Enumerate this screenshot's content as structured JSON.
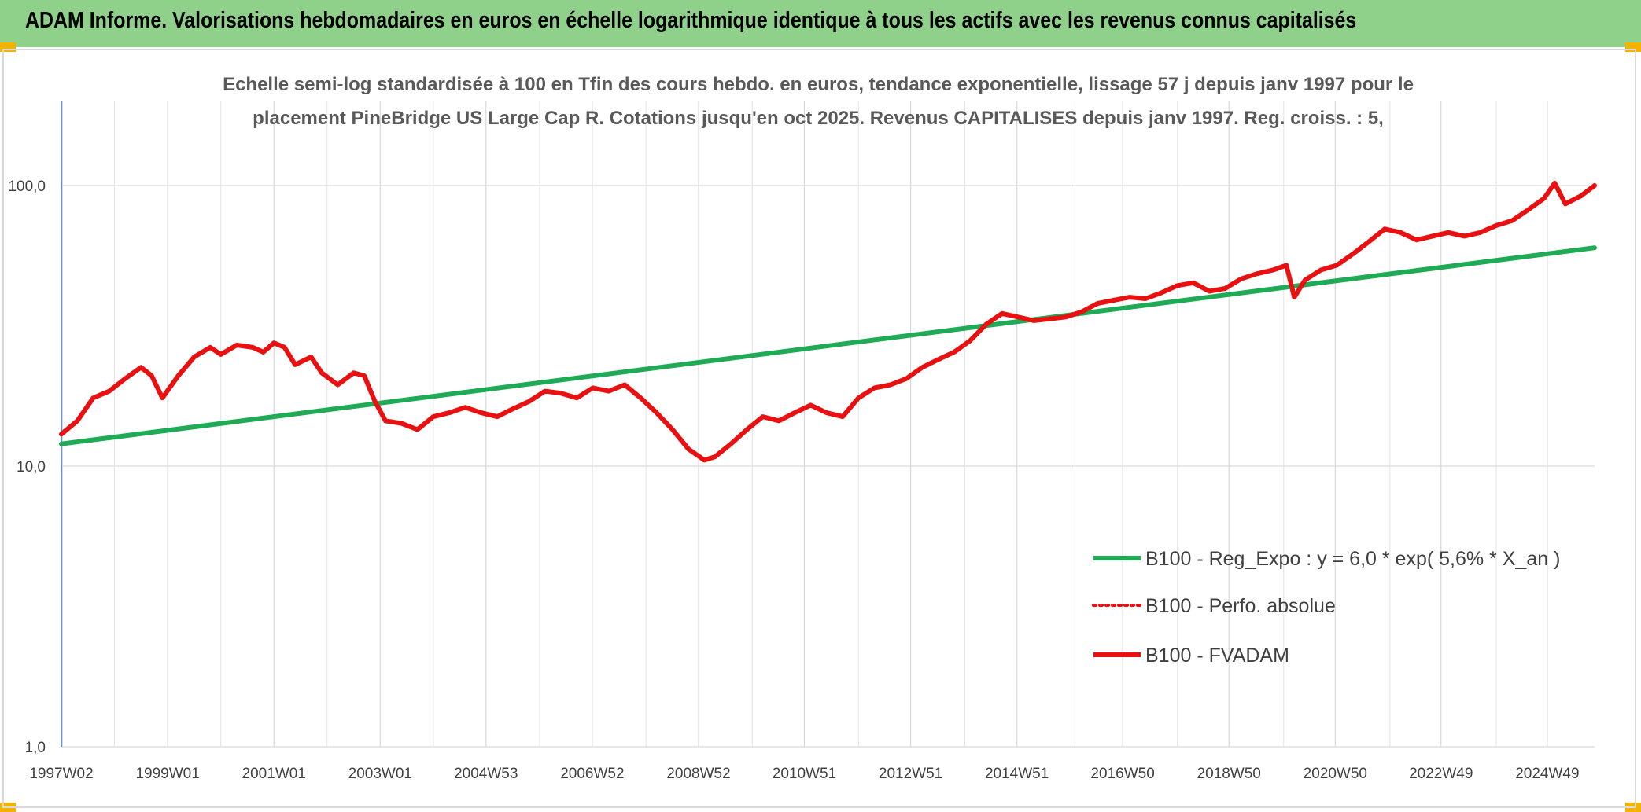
{
  "header": {
    "title": "ADAM Informe. Valorisations hebdomadaires en euros en échelle logarithmique identique à tous les actifs avec les revenus connus capitalisés",
    "background": "#8fd08a"
  },
  "chart_data": {
    "type": "line",
    "title_line1": "Echelle semi-log standardisée à 100 en Tfin des cours hebdo. en euros, tendance exponentielle, lissage 57 j depuis janv 1997 pour le",
    "title_line2": "placement PineBridge US Large Cap R. Cotations jusqu'en oct 2025. Revenus CAPITALISES depuis janv 1997. Reg. croiss. : 5,",
    "yscale": "log",
    "ylim": [
      1,
      200
    ],
    "xlim": [
      1997.0,
      2025.85
    ],
    "y_ticks": [
      {
        "value": 1,
        "label": "1,0"
      },
      {
        "value": 10,
        "label": "10,0"
      },
      {
        "value": 100,
        "label": "100,0"
      }
    ],
    "x_ticks": [
      {
        "year": 1997.02,
        "label": "1997W02"
      },
      {
        "year": 1999.0,
        "label": "1999W01"
      },
      {
        "year": 2001.0,
        "label": "2001W01"
      },
      {
        "year": 2003.0,
        "label": "2003W01"
      },
      {
        "year": 2004.99,
        "label": "2004W53"
      },
      {
        "year": 2006.99,
        "label": "2006W52"
      },
      {
        "year": 2008.99,
        "label": "2008W52"
      },
      {
        "year": 2010.98,
        "label": "2010W51"
      },
      {
        "year": 2012.98,
        "label": "2012W51"
      },
      {
        "year": 2014.98,
        "label": "2014W51"
      },
      {
        "year": 2016.97,
        "label": "2016W50"
      },
      {
        "year": 2018.97,
        "label": "2018W50"
      },
      {
        "year": 2020.97,
        "label": "2020W50"
      },
      {
        "year": 2022.96,
        "label": "2022W49"
      },
      {
        "year": 2024.96,
        "label": "2024W49"
      }
    ],
    "minor_grid_years": [
      1998,
      2000,
      2002,
      2004,
      2006,
      2008,
      2010,
      2012,
      2014,
      2016,
      2018,
      2020,
      2022,
      2024
    ],
    "series": [
      {
        "name": "B100 - Reg_Expo : y = 6,0 * exp( 5,6% *  X_an )",
        "color": "#1faa55",
        "style": "solid",
        "x": [
          1997.0,
          2025.85
        ],
        "y": [
          12.0,
          60.0
        ]
      },
      {
        "name": "B100 - Perfo. absolue",
        "color": "#e81010",
        "style": "dotted",
        "x": [],
        "y": []
      },
      {
        "name": "B100 - FVADAM",
        "color": "#e81010",
        "style": "solid",
        "x": [
          1997.0,
          1997.3,
          1997.6,
          1997.9,
          1998.2,
          1998.5,
          1998.7,
          1998.9,
          1999.2,
          1999.5,
          1999.8,
          2000.0,
          2000.3,
          2000.6,
          2000.8,
          2001.0,
          2001.2,
          2001.4,
          2001.7,
          2001.9,
          2002.2,
          2002.5,
          2002.7,
          2002.9,
          2003.1,
          2003.4,
          2003.7,
          2004.0,
          2004.3,
          2004.6,
          2004.9,
          2005.2,
          2005.5,
          2005.8,
          2006.1,
          2006.4,
          2006.7,
          2007.0,
          2007.3,
          2007.6,
          2007.9,
          2008.2,
          2008.5,
          2008.8,
          2009.1,
          2009.3,
          2009.6,
          2009.9,
          2010.2,
          2010.5,
          2010.8,
          2011.1,
          2011.4,
          2011.7,
          2012.0,
          2012.3,
          2012.6,
          2012.9,
          2013.2,
          2013.5,
          2013.8,
          2014.1,
          2014.4,
          2014.7,
          2015.0,
          2015.3,
          2015.6,
          2015.9,
          2016.2,
          2016.5,
          2016.8,
          2017.1,
          2017.4,
          2017.7,
          2018.0,
          2018.3,
          2018.6,
          2018.9,
          2019.2,
          2019.5,
          2019.8,
          2020.05,
          2020.2,
          2020.4,
          2020.7,
          2021.0,
          2021.3,
          2021.6,
          2021.9,
          2022.2,
          2022.5,
          2022.8,
          2023.1,
          2023.4,
          2023.7,
          2024.0,
          2024.3,
          2024.6,
          2024.9,
          2025.1,
          2025.3,
          2025.6,
          2025.85
        ],
        "y": [
          13.0,
          14.5,
          17.5,
          18.5,
          20.5,
          22.5,
          21.0,
          17.5,
          21.0,
          24.5,
          26.5,
          25.0,
          27.0,
          26.5,
          25.5,
          27.5,
          26.5,
          23.0,
          24.5,
          21.5,
          19.5,
          21.5,
          21.0,
          17.0,
          14.5,
          14.2,
          13.5,
          15.0,
          15.5,
          16.2,
          15.5,
          15.0,
          16.0,
          17.0,
          18.5,
          18.2,
          17.5,
          19.0,
          18.5,
          19.5,
          17.5,
          15.5,
          13.5,
          11.5,
          10.5,
          10.8,
          12.0,
          13.5,
          15.0,
          14.5,
          15.5,
          16.5,
          15.5,
          15.0,
          17.5,
          19.0,
          19.5,
          20.5,
          22.5,
          24.0,
          25.5,
          28.0,
          32.0,
          35.0,
          34.0,
          33.0,
          33.5,
          34.0,
          35.5,
          38.0,
          39.0,
          40.0,
          39.5,
          41.5,
          44.0,
          45.0,
          42.0,
          43.0,
          46.5,
          48.5,
          50.0,
          52.0,
          40.0,
          46.0,
          50.0,
          52.0,
          57.0,
          63.0,
          70.0,
          68.0,
          64.0,
          66.0,
          68.0,
          66.0,
          68.0,
          72.0,
          75.0,
          82.0,
          90.0,
          102.0,
          86.0,
          92.0,
          100.0
        ]
      }
    ],
    "legend_position": "bottom-right"
  }
}
